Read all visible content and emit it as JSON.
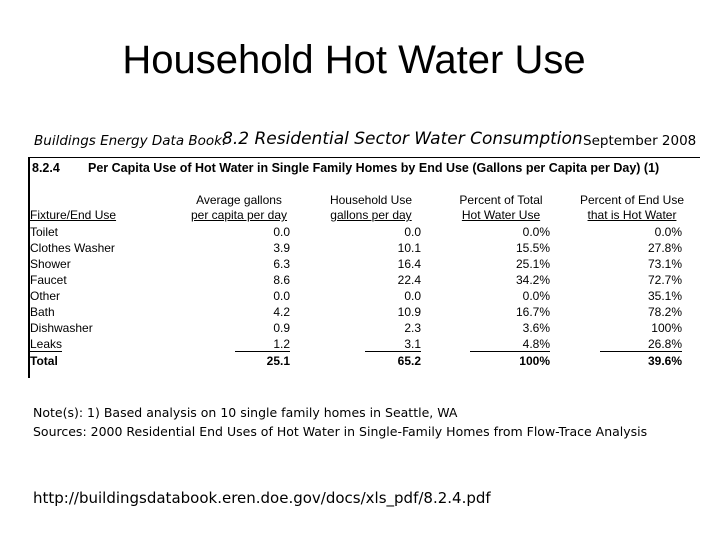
{
  "slide": {
    "title": "Household Hot Water Use",
    "header_left": "Buildings Energy Data Book:",
    "header_mid": "8.2 Residential Sector Water Consumption",
    "header_right": "September 2008"
  },
  "table": {
    "number": "8.2.4",
    "title": "Per Capita Use of Hot Water in Single Family Homes by End Use (Gallons per Capita per Day) (1)",
    "columns": [
      {
        "line1": "",
        "line2": "Fixture/End Use"
      },
      {
        "line1": "Average gallons",
        "line2": "per capita per day"
      },
      {
        "line1": "Household Use",
        "line2": "gallons per day"
      },
      {
        "line1": "Percent of Total",
        "line2": "Hot Water Use"
      },
      {
        "line1": "Percent of End Use",
        "line2": "that is Hot Water"
      }
    ],
    "rows": [
      {
        "name": "Toilet",
        "avg": "0.0",
        "household": "0.0",
        "pct_total": "0.0%",
        "pct_end": "0.0%"
      },
      {
        "name": "Clothes Washer",
        "avg": "3.9",
        "household": "10.1",
        "pct_total": "15.5%",
        "pct_end": "27.8%"
      },
      {
        "name": "Shower",
        "avg": "6.3",
        "household": "16.4",
        "pct_total": "25.1%",
        "pct_end": "73.1%"
      },
      {
        "name": "Faucet",
        "avg": "8.6",
        "household": "22.4",
        "pct_total": "34.2%",
        "pct_end": "72.7%"
      },
      {
        "name": "Other",
        "avg": "0.0",
        "household": "0.0",
        "pct_total": "0.0%",
        "pct_end": "35.1%"
      },
      {
        "name": "Bath",
        "avg": "4.2",
        "household": "10.9",
        "pct_total": "16.7%",
        "pct_end": "78.2%"
      },
      {
        "name": "Dishwasher",
        "avg": "0.9",
        "household": "2.3",
        "pct_total": "3.6%",
        "pct_end": "100%"
      },
      {
        "name": "Leaks",
        "avg": "1.2",
        "household": "3.1",
        "pct_total": "4.8%",
        "pct_end": "26.8%"
      }
    ],
    "total": {
      "name": "Total",
      "avg": "25.1",
      "household": "65.2",
      "pct_total": "100%",
      "pct_end": "39.6%"
    }
  },
  "notes": {
    "note": "Note(s): 1) Based analysis on 10 single family homes in Seattle, WA",
    "sources": "Sources: 2000 Residential End Uses of Hot Water in Single-Family Homes from Flow-Trace Analysis",
    "url": "http://buildingsdatabook.eren.doe.gov/docs/xls_pdf/8.2.4.pdf"
  }
}
